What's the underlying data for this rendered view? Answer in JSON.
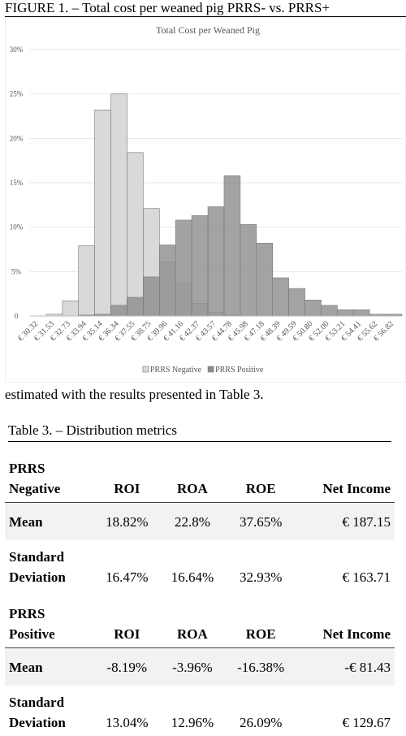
{
  "header": {
    "figure_caption": "FIGURE 1. – Total cost per weaned pig PRRS- vs. PRRS+"
  },
  "chart_data": {
    "type": "bar",
    "title": "Total Cost per Weaned Pig",
    "categories": [
      "€ 30.32",
      "€ 31.53",
      "€ 32.73",
      "€ 33.94",
      "€ 35.14",
      "€ 36.34",
      "€ 37.55",
      "€ 38.75",
      "€ 39.96",
      "€ 41.16",
      "€ 42.37",
      "€ 43.57",
      "€ 44.78",
      "€ 45.98",
      "€ 47.18",
      "€ 48.39",
      "€ 49.59",
      "€ 50.80",
      "€ 52.00",
      "€ 53.21",
      "€ 54.41",
      "€ 55.62",
      "€ 56.82"
    ],
    "series": [
      {
        "name": "PRRS Negative",
        "color": "#d9d9d9",
        "values": [
          0,
          0.2,
          1.7,
          7.9,
          23.2,
          25.0,
          18.4,
          12.1,
          6.1,
          3.7,
          1.4,
          0.4,
          0.1,
          0,
          0,
          0,
          0,
          0,
          0,
          0,
          0,
          0,
          0
        ]
      },
      {
        "name": "PRRS Positive",
        "color": "#8c8c8c",
        "values": [
          0,
          0,
          0,
          0.1,
          0.2,
          1.2,
          2.1,
          4.4,
          8.0,
          10.8,
          11.3,
          12.3,
          15.8,
          10.3,
          8.2,
          4.3,
          3.1,
          1.8,
          1.2,
          0.7,
          0.7,
          0.2,
          0.2
        ]
      }
    ],
    "ylim": [
      0,
      30
    ],
    "yticks": [
      0,
      {
        "value": 5,
        "label": "5%"
      },
      {
        "value": 10,
        "label": "10%"
      },
      {
        "value": 15,
        "label": "15%"
      },
      {
        "value": 20,
        "label": "20%"
      },
      {
        "value": 25,
        "label": "25%"
      },
      {
        "value": 30,
        "label": "30%"
      }
    ],
    "grid": true,
    "legend": "bottom"
  },
  "body": {
    "text": "estimated with the results presented in Table 3."
  },
  "table": {
    "title": "Table 3. – Distribution metrics",
    "rows": [
      [
        "PRRS Negative",
        "ROI",
        "ROA",
        "ROE",
        "Net Income"
      ],
      [
        "Mean",
        "18.82%",
        "22.8%",
        "37.65%",
        "€ 187.15"
      ],
      [
        "Standard Deviation",
        "16.47%",
        "16.64%",
        "32.93%",
        "€ 163.71"
      ],
      [
        "PRRS Positive",
        "ROI",
        "ROA",
        "ROE",
        "Net Income"
      ],
      [
        "Mean",
        "-8.19%",
        "-3.96%",
        "-16.38%",
        "-€ 81.43"
      ],
      [
        "Standard Deviation",
        "13.04%",
        "12.96%",
        "26.09%",
        "€ 129.67"
      ]
    ]
  }
}
